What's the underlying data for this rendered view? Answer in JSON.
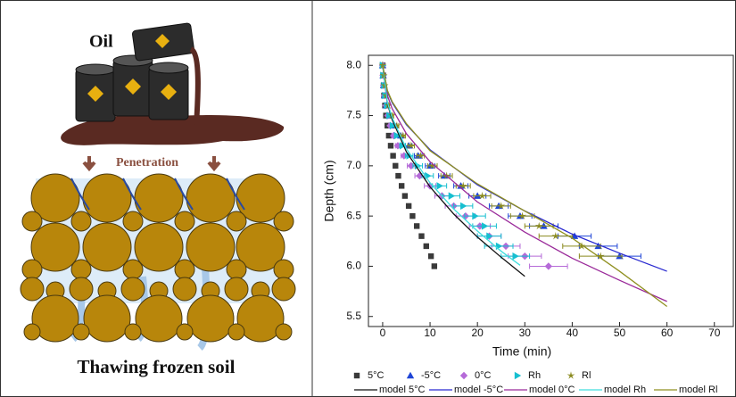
{
  "illustration": {
    "oil_label": "Oil",
    "arrow_label": "Penetration",
    "caption": "Thawing frozen soil"
  },
  "chart_data": {
    "type": "scatter",
    "x_label": "Time (min)",
    "y_label": "Depth (cm)",
    "xlim": [
      -3,
      74
    ],
    "ylim": [
      5.4,
      8.1
    ],
    "xticks": [
      0,
      10,
      20,
      30,
      40,
      50,
      60,
      70
    ],
    "yticks": [
      {
        "value": 5.5,
        "label": "5.5"
      },
      {
        "value": 6,
        "label": "6.0"
      },
      {
        "value": 6.5,
        "label": "6.5"
      },
      {
        "value": 7,
        "label": "7.0"
      },
      {
        "value": 7.5,
        "label": "7.5"
      },
      {
        "value": 8,
        "label": "8.0"
      }
    ],
    "series": [
      {
        "name": "5°C",
        "marker": "square",
        "color": "#3a3a3a",
        "x": [
          0,
          0.1,
          0.2,
          0.3,
          0.5,
          0.7,
          1.0,
          1.3,
          1.7,
          2.2,
          2.7,
          3.3,
          4.0,
          4.7,
          5.5,
          6.3,
          7.2,
          8.2,
          9.2,
          10.2,
          10.9
        ],
        "values": [
          8.0,
          7.9,
          7.8,
          7.7,
          7.6,
          7.5,
          7.4,
          7.3,
          7.2,
          7.1,
          7.0,
          6.9,
          6.8,
          6.7,
          6.6,
          6.5,
          6.4,
          6.3,
          6.2,
          6.1,
          6.0
        ]
      },
      {
        "name": "-5°C",
        "marker": "triangle",
        "color": "#1f45d6",
        "x": [
          0,
          0.1,
          0.2,
          0.4,
          0.8,
          1.5,
          2.5,
          3.8,
          5.5,
          7.5,
          10,
          13,
          16.5,
          20,
          24.5,
          29,
          34,
          40.5,
          45.5,
          50
        ],
        "x_errors": [
          0,
          0,
          0,
          0,
          0,
          0.3,
          0.4,
          0.5,
          0.7,
          0.8,
          1,
          1.2,
          1.5,
          1.8,
          2,
          2.5,
          3,
          3.5,
          4,
          4.5
        ],
        "values": [
          8.0,
          7.9,
          7.8,
          7.7,
          7.6,
          7.5,
          7.4,
          7.3,
          7.2,
          7.1,
          7.0,
          6.9,
          6.8,
          6.7,
          6.6,
          6.5,
          6.4,
          6.3,
          6.2,
          6.1
        ]
      },
      {
        "name": "0°C",
        "marker": "diamond",
        "color": "#b56ad8",
        "x": [
          0,
          0.1,
          0.2,
          0.4,
          0.7,
          1.1,
          1.6,
          2.3,
          3.2,
          4.5,
          6,
          7.8,
          10,
          12.5,
          15,
          17.5,
          20.5,
          22.5,
          26,
          30,
          35
        ],
        "x_errors": [
          0,
          0,
          0,
          0,
          0,
          0.2,
          0.3,
          0.4,
          0.5,
          0.6,
          0.8,
          1,
          1.2,
          1.5,
          1.8,
          2,
          2.2,
          2.5,
          3,
          3.5,
          4
        ],
        "values": [
          8.0,
          7.9,
          7.8,
          7.7,
          7.6,
          7.5,
          7.4,
          7.3,
          7.2,
          7.1,
          7.0,
          6.9,
          6.8,
          6.7,
          6.6,
          6.5,
          6.4,
          6.3,
          6.2,
          6.1,
          6.0
        ]
      },
      {
        "name": "Rh",
        "marker": "right-triangle",
        "color": "#16bfd0",
        "x": [
          0,
          0.1,
          0.3,
          0.5,
          0.9,
          1.4,
          2.1,
          3,
          4.2,
          5.6,
          7.4,
          9.5,
          12,
          14.5,
          17,
          19.5,
          21.5,
          22.5,
          24.5,
          28
        ],
        "x_errors": [
          0,
          0,
          0,
          0,
          0.2,
          0.3,
          0.4,
          0.5,
          0.6,
          0.8,
          1,
          1.2,
          1.5,
          1.8,
          2,
          2.2,
          2.5,
          2.5,
          3,
          3
        ],
        "values": [
          8.0,
          7.9,
          7.8,
          7.7,
          7.6,
          7.5,
          7.4,
          7.3,
          7.2,
          7.1,
          7.0,
          6.9,
          6.8,
          6.7,
          6.6,
          6.5,
          6.4,
          6.3,
          6.2,
          6.1
        ]
      },
      {
        "name": "Rl",
        "marker": "star",
        "color": "#8a8a1e",
        "x": [
          0,
          0.2,
          0.4,
          0.7,
          1.2,
          2,
          3,
          4.3,
          6,
          8,
          10.5,
          13.5,
          17,
          21,
          25,
          29.5,
          33,
          36.5,
          42,
          46
        ],
        "x_errors": [
          0,
          0,
          0,
          0,
          0.2,
          0.3,
          0.4,
          0.5,
          0.7,
          0.8,
          1,
          1.2,
          1.5,
          1.8,
          2,
          2.5,
          3,
          3.5,
          4,
          4.5
        ],
        "values": [
          8.0,
          7.9,
          7.8,
          7.7,
          7.6,
          7.5,
          7.4,
          7.3,
          7.2,
          7.1,
          7.0,
          6.9,
          6.8,
          6.7,
          6.6,
          6.5,
          6.4,
          6.3,
          6.2,
          6.1
        ]
      },
      {
        "name": "model 5°C",
        "marker": "line",
        "color": "#111111",
        "x": [
          0,
          1,
          2,
          5,
          10,
          15,
          20,
          25,
          30
        ],
        "values": [
          8,
          7.62,
          7.46,
          7.14,
          6.79,
          6.52,
          6.29,
          6.09,
          5.9
        ]
      },
      {
        "name": "model -5°C",
        "marker": "line",
        "color": "#2a2ad0",
        "x": [
          0,
          1,
          2,
          5,
          10,
          20,
          30,
          40,
          50,
          60
        ],
        "values": [
          8,
          7.74,
          7.63,
          7.41,
          7.16,
          6.81,
          6.55,
          6.32,
          6.13,
          5.95
        ]
      },
      {
        "name": "model 0°C",
        "marker": "line",
        "color": "#9a2a9a",
        "x": [
          0,
          1,
          2,
          5,
          10,
          20,
          30,
          40,
          50,
          60
        ],
        "values": [
          8,
          7.7,
          7.57,
          7.32,
          7.04,
          6.64,
          6.34,
          6.08,
          5.86,
          5.65
        ]
      },
      {
        "name": "model Rh",
        "marker": "line",
        "color": "#40dede",
        "x": [
          0,
          1,
          2,
          5,
          10,
          15,
          20,
          25,
          29
        ],
        "values": [
          8,
          7.63,
          7.48,
          7.17,
          6.83,
          6.57,
          6.35,
          6.15,
          6.01
        ]
      },
      {
        "name": "model Rl",
        "marker": "line",
        "color": "#909020",
        "x": [
          0,
          1,
          2,
          5,
          10,
          20,
          30,
          40,
          50,
          60
        ],
        "values": [
          8,
          7.75,
          7.64,
          7.42,
          7.15,
          6.82,
          6.55,
          6.28,
          5.95,
          5.6
        ]
      }
    ]
  }
}
